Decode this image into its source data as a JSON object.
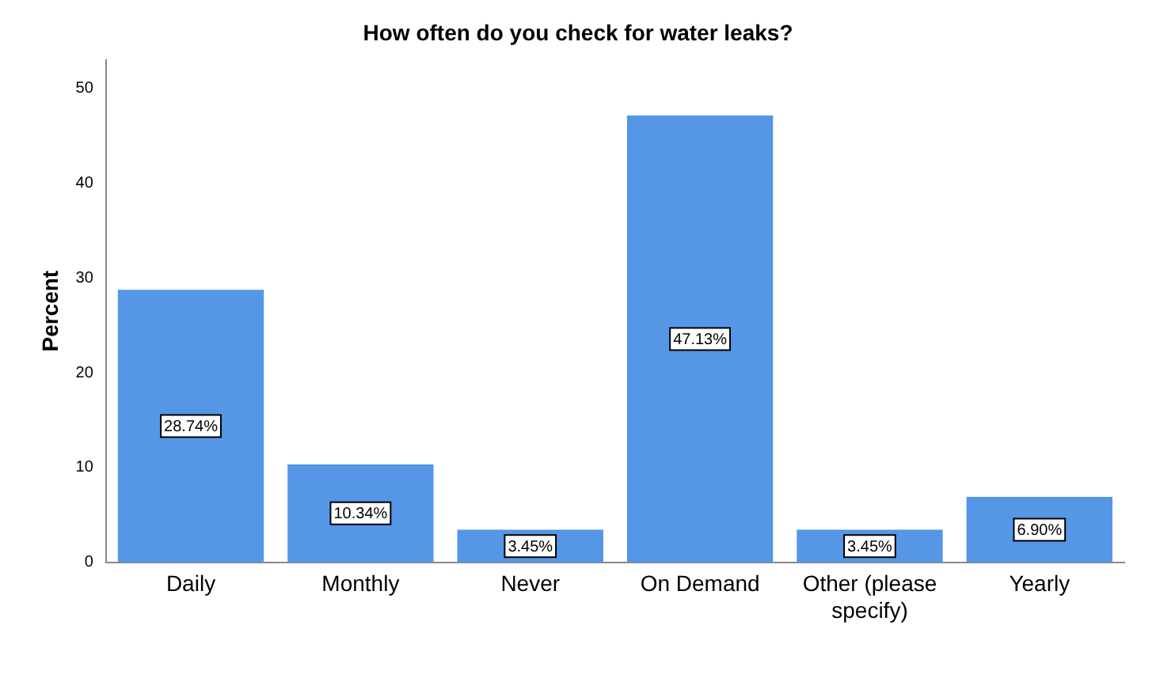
{
  "chart_data": {
    "type": "bar",
    "title": "How often do you check for water leaks?",
    "ylabel": "Percent",
    "categories": [
      "Daily",
      "Monthly",
      "Never",
      "On Demand",
      "Other (please specify)",
      "Yearly"
    ],
    "values": [
      28.74,
      10.34,
      3.45,
      47.13,
      3.45,
      6.9
    ],
    "value_labels": [
      "28.74%",
      "10.34%",
      "3.45%",
      "47.13%",
      "3.45%",
      "6.90%"
    ],
    "color": "#5596e6",
    "ylim": [
      0,
      53
    ],
    "yticks": [
      0,
      10,
      20,
      30,
      40,
      50
    ],
    "grid": false,
    "legend": false
  }
}
